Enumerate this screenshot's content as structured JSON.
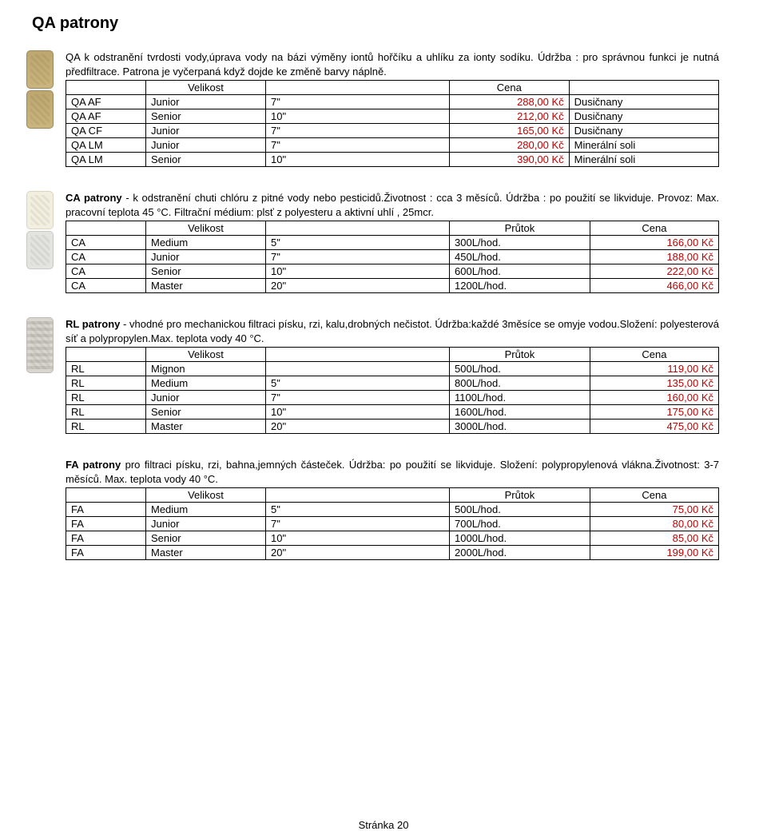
{
  "title": "QA patrony",
  "sections": {
    "qa": {
      "desc": "QA k odstranění tvrdosti vody,úprava vody na bázi výměny iontů hořčíku a uhlíku za ionty sodíku. Údržba : pro správnou funkci je nutná předfiltrace. Patrona je vyčerpaná když dojde ke změně barvy náplně.",
      "headers": [
        "",
        "Velikost",
        "",
        "Cena",
        ""
      ],
      "rows": [
        {
          "c1": "QA AF",
          "c2": "Junior",
          "c3": "7\"",
          "price": "288,00 Kč",
          "note": "Dusičnany"
        },
        {
          "c1": "QA AF",
          "c2": "Senior",
          "c3": "10\"",
          "price": "212,00 Kč",
          "note": "Dusičnany"
        },
        {
          "c1": "QA CF",
          "c2": "Junior",
          "c3": "7\"",
          "price": "165,00 Kč",
          "note": "Dusičnany"
        },
        {
          "c1": "QA LM",
          "c2": "Junior",
          "c3": "7\"",
          "price": "280,00 Kč",
          "note": "Minerální soli"
        },
        {
          "c1": "QA LM",
          "c2": "Senior",
          "c3": "10\"",
          "price": "390,00 Kč",
          "note": "Minerální soli"
        }
      ]
    },
    "ca": {
      "desc_parts": {
        "a": "CA patrony",
        "b": " - k odstranění chuti chlóru z pitné vody nebo pesticidů.Životnost : cca 3 měsíců. Údržba : po použití se likviduje. Provoz: Max. pracovní teplota 45 °C. Filtrační médium: plsť z polyesteru a aktivní uhlí , 25mcr."
      },
      "headers": [
        "",
        "Velikost",
        "",
        "Průtok",
        "Cena"
      ],
      "rows": [
        {
          "c1": "CA",
          "c2": "Medium",
          "c3": "5\"",
          "flow": "300L/hod.",
          "price": "166,00 Kč"
        },
        {
          "c1": "CA",
          "c2": "Junior",
          "c3": "7\"",
          "flow": "450L/hod.",
          "price": "188,00 Kč"
        },
        {
          "c1": "CA",
          "c2": "Senior",
          "c3": "10\"",
          "flow": "600L/hod.",
          "price": "222,00 Kč"
        },
        {
          "c1": "CA",
          "c2": "Master",
          "c3": "20\"",
          "flow": "1200L/hod.",
          "price": "466,00 Kč"
        }
      ]
    },
    "rl": {
      "desc_parts": {
        "a": "RL patrony",
        "b": " - vhodné pro mechanickou filtraci písku, rzi, kalu,drobných nečistot. Údržba:každé 3měsíce se omyje vodou.Složení: polyesterová síť a polypropylen.Max. teplota vody 40 °C."
      },
      "headers": [
        "",
        "Velikost",
        "",
        "Průtok",
        "Cena"
      ],
      "rows": [
        {
          "c1": "RL",
          "c2": "Mignon",
          "c3": "",
          "flow": "500L/hod.",
          "price": "119,00 Kč"
        },
        {
          "c1": "RL",
          "c2": "Medium",
          "c3": "5\"",
          "flow": "800L/hod.",
          "price": "135,00 Kč"
        },
        {
          "c1": "RL",
          "c2": "Junior",
          "c3": "7\"",
          "flow": "1100L/hod.",
          "price": "160,00 Kč"
        },
        {
          "c1": "RL",
          "c2": "Senior",
          "c3": "10\"",
          "flow": "1600L/hod.",
          "price": "175,00 Kč"
        },
        {
          "c1": "RL",
          "c2": "Master",
          "c3": "20\"",
          "flow": "3000L/hod.",
          "price": "475,00 Kč"
        }
      ]
    },
    "fa": {
      "desc_parts": {
        "a": "FA patrony",
        "b": " pro filtraci písku, rzi, bahna,jemných částeček. Údržba: po použití se likviduje. Složení: polypropylenová vlákna.Životnost: 3-7 měsíců. Max. teplota vody 40 °C."
      },
      "headers": [
        "",
        "Velikost",
        "",
        "Průtok",
        "Cena"
      ],
      "rows": [
        {
          "c1": "FA",
          "c2": "Medium",
          "c3": "5\"",
          "flow": "500L/hod.",
          "price": "75,00 Kč"
        },
        {
          "c1": "FA",
          "c2": "Junior",
          "c3": "7\"",
          "flow": "700L/hod.",
          "price": "80,00 Kč"
        },
        {
          "c1": "FA",
          "c2": "Senior",
          "c3": "10\"",
          "flow": "1000L/hod.",
          "price": "85,00 Kč"
        },
        {
          "c1": "FA",
          "c2": "Master",
          "c3": "20\"",
          "flow": "2000L/hod.",
          "price": "199,00 Kč"
        }
      ]
    }
  },
  "footer": "Stránka 20",
  "colors": {
    "price": "#c00000"
  }
}
